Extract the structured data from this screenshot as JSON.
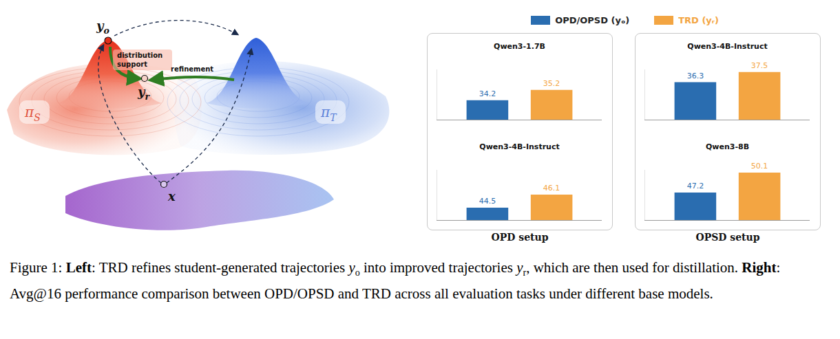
{
  "diagram": {
    "student": {
      "symbol": "π",
      "sub": "S"
    },
    "teacher": {
      "symbol": "π",
      "sub": "T"
    },
    "input": "x",
    "original": {
      "symbol": "y",
      "sub": "o"
    },
    "refined": {
      "symbol": "y",
      "sub": "r"
    },
    "arrow_labels": [
      "distribution support",
      "refinement"
    ]
  },
  "panel_labels": [
    "OPD setup",
    "OPSD setup"
  ],
  "chart_data": [
    {
      "type": "bar",
      "title": "Qwen3-1.7B",
      "categories": [
        null
      ],
      "series": [
        {
          "name": "OPD/OPSD (yₒ)",
          "color": "#2a6db0",
          "values": [
            34.2
          ]
        },
        {
          "name": "TRD (yᵣ)",
          "color": "#f3a542",
          "values": [
            35.2
          ]
        }
      ],
      "ylim": [
        32.3,
        37.2
      ],
      "data_labels": true,
      "tick_labels": false,
      "legend": "top"
    },
    {
      "type": "bar",
      "title": "Qwen3-4B-Instruct",
      "categories": [
        null
      ],
      "series": [
        {
          "name": "OPD/OPSD (yₒ)",
          "color": "#2a6db0",
          "values": [
            44.5
          ]
        },
        {
          "name": "TRD (yᵣ)",
          "color": "#f3a542",
          "values": [
            46.1
          ]
        }
      ],
      "ylim": [
        43.0,
        49.1
      ],
      "data_labels": true,
      "tick_labels": false,
      "legend": "top"
    },
    {
      "type": "bar",
      "title": "Qwen3-4B-Instruct",
      "categories": [
        null
      ],
      "series": [
        {
          "name": "OPD/OPSD (yₒ)",
          "color": "#2a6db0",
          "values": [
            36.3
          ]
        },
        {
          "name": "TRD (yᵣ)",
          "color": "#f3a542",
          "values": [
            37.5
          ]
        }
      ],
      "ylim": [
        31.9,
        37.8
      ],
      "data_labels": true,
      "tick_labels": false,
      "legend": "top"
    },
    {
      "type": "bar",
      "title": "Qwen3-8B",
      "categories": [
        null
      ],
      "series": [
        {
          "name": "OPD/OPSD (yₒ)",
          "color": "#2a6db0",
          "values": [
            47.2
          ]
        },
        {
          "name": "TRD (yᵣ)",
          "color": "#f3a542",
          "values": [
            50.1
          ]
        }
      ],
      "ylim": [
        43.2,
        50.5
      ],
      "data_labels": true,
      "tick_labels": false,
      "legend": "top"
    }
  ],
  "caption": [
    {
      "text": "Figure 1: "
    },
    {
      "text": "Left",
      "bold": true
    },
    {
      "text": ": TRD refines student-generated trajectories "
    },
    {
      "symbol": "y",
      "sub": "o"
    },
    {
      "text": " into improved trajectories "
    },
    {
      "symbol": "y",
      "sub": "r"
    },
    {
      "text": ", which are then used for distillation. "
    },
    {
      "text": "Right",
      "bold": true
    },
    {
      "text": ": Avg@16 performance comparison between OPD/OPSD and TRD across all evaluation tasks under different base models."
    }
  ]
}
